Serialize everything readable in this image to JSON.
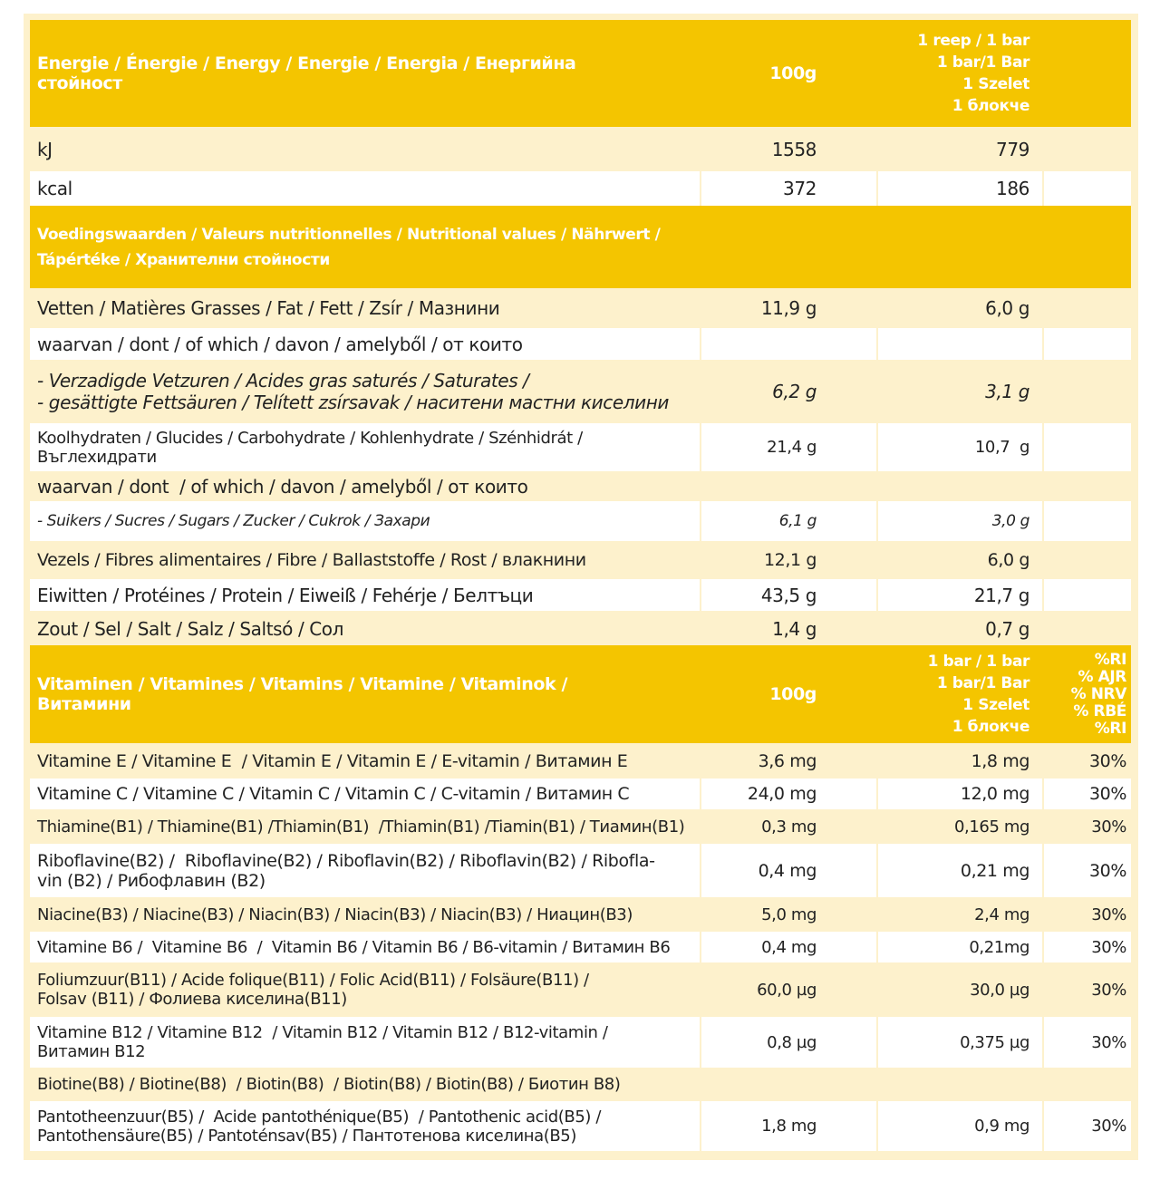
{
  "sections": [
    {
      "header": [
        [
          "Energie / Énergie / Energy / Energie / Energia / Енергийна",
          "стойност"
        ],
        [
          "100g"
        ],
        [
          "1 reep / 1 bar",
          "1 bar/1 Bar",
          "1 Szelet",
          "1 блокче"
        ]
      ],
      "rows": [
        [
          [
            "kJ"
          ],
          [
            "1558"
          ],
          [
            "779"
          ]
        ],
        [
          [
            "kcal"
          ],
          [
            "372"
          ],
          [
            "186"
          ]
        ]
      ]
    },
    {
      "header": [
        [
          "Voedingswaarden / Valeurs nutritionnelles / Nutritional values / Nährwert /",
          "Tápértéke / Хранителни стойности"
        ]
      ],
      "rows": [
        [
          [
            "Vetten / Matières Grasses / Fat / Fett / Zsír / Мазнини"
          ],
          [
            "11,9 g"
          ],
          [
            "6,0 g"
          ]
        ],
        [
          [
            "waarvan / dont / of which / davon / amelyből / от които"
          ]
        ],
        [
          [
            "- Verzadigde Vetzuren / Acides gras saturés / Saturates /",
            "- gesättigte Fettsäuren / Telített zsírsavak / наситени мастни киселини"
          ],
          [
            "6,2 g"
          ],
          [
            "3,1 g"
          ]
        ],
        [
          [
            "Koolhydraten / Glucides / Carbohydrate / Kohlenhydrate / Szénhidrát /",
            "Въглехидрати"
          ],
          [
            "21,4 g"
          ],
          [
            "10,7  g"
          ]
        ],
        [
          [
            "waarvan / dont  / of which / davon / amelyből / от които"
          ]
        ],
        [
          [
            "- Suikers / Sucres / Sugars / Zucker / Cukrok / Захари"
          ],
          [
            "6,1 g"
          ],
          [
            "3,0 g"
          ]
        ],
        [
          [
            "Vezels / Fibres alimentaires / Fibre / Ballaststoffe / Rost / влакнини"
          ],
          [
            "12,1 g"
          ],
          [
            "6,0 g"
          ]
        ],
        [
          [
            "Eiwitten / Protéines / Protein / Eiweiß / Fehérje / Белтъци"
          ],
          [
            "43,5 g"
          ],
          [
            "21,7 g"
          ]
        ],
        [
          [
            "Zout / Sel / Salt / Salz / Saltsó / Сол"
          ],
          [
            "1,4 g"
          ],
          [
            "0,7 g"
          ]
        ]
      ]
    },
    {
      "header": [
        [
          "Vitaminen / Vitamines / Vitamins / Vitamine / Vitaminok /",
          "Витамини"
        ],
        [
          "100g"
        ],
        [
          "1 bar / 1 bar",
          "1 bar/1 Bar",
          "1 Szelet",
          "1 блокче"
        ],
        [
          "%RI",
          "% AJR",
          "% NRV",
          "% RBÉ",
          "%RI"
        ]
      ],
      "rows": [
        [
          [
            "Vitamine E / Vitamine E  / Vitamin E / Vitamin E / E-vitamin / Витамин E"
          ],
          [
            "3,6 mg"
          ],
          [
            "1,8 mg"
          ],
          [
            "30%"
          ]
        ],
        [
          [
            "Vitamine C / Vitamine C / Vitamin C / Vitamin C / C-vitamin / Витамин C"
          ],
          [
            "24,0 mg"
          ],
          [
            "12,0 mg"
          ],
          [
            "30%"
          ]
        ],
        [
          [
            "Thiamine(B1) / Thiamine(B1) /Thiamin(B1)  /Thiamin(B1) /Tiamin(B1) / Тиамин(B1)"
          ],
          [
            "0,3 mg"
          ],
          [
            "0,165 mg"
          ],
          [
            "30%"
          ]
        ],
        [
          [
            "Riboflavine(B2) /  Riboflavine(B2) / Riboflavin(B2) / Riboflavin(B2) / Ribofla-",
            "vin (B2) / Рибофлавин (B2)"
          ],
          [
            "0,4 mg"
          ],
          [
            "0,21 mg"
          ],
          [
            "30%"
          ]
        ],
        [
          [
            "Niacine(B3) / Niacine(B3) / Niacin(B3) / Niacin(B3) / Niacin(B3) / Ниацин(B3)"
          ],
          [
            "5,0 mg"
          ],
          [
            "2,4 mg"
          ],
          [
            "30%"
          ]
        ],
        [
          [
            "Vitamine B6 /  Vitamine B6  /  Vitamin B6 / Vitamin B6 / B6-vitamin / Витамин B6"
          ],
          [
            "0,4 mg"
          ],
          [
            "0,21mg"
          ],
          [
            "30%"
          ]
        ],
        [
          [
            "Foliumzuur(B11) / Acide folique(B11) / Folic Acid(B11) / Folsäure(B11) /",
            "Folsav (B11) / Фолиева киселина(B11)"
          ],
          [
            "60,0 µg"
          ],
          [
            "30,0 µg"
          ],
          [
            "30%"
          ]
        ],
        [
          [
            "Vitamine B12 / Vitamine B12  / Vitamin B12 / Vitamin B12 / B12-vitamin /",
            "Витамин B12"
          ],
          [
            "0,8 µg"
          ],
          [
            "0,375 µg"
          ],
          [
            "30%"
          ]
        ],
        [
          [
            "Biotine(B8) / Biotine(B8)  / Biotin(B8)  / Biotin(B8) / Biotin(B8) / Биотин B8)"
          ]
        ],
        [
          [
            "Pantotheenzuur(B5) /  Acide pantothénique(B5)  / Pantothenic acid(B5) /",
            "Pantothensäure(B5) / Pantoténsav(B5) / Пантотенова киселина(B5)"
          ],
          [
            "1,8 mg"
          ],
          [
            "0,9 mg"
          ],
          [
            "30%"
          ]
        ]
      ]
    }
  ]
}
